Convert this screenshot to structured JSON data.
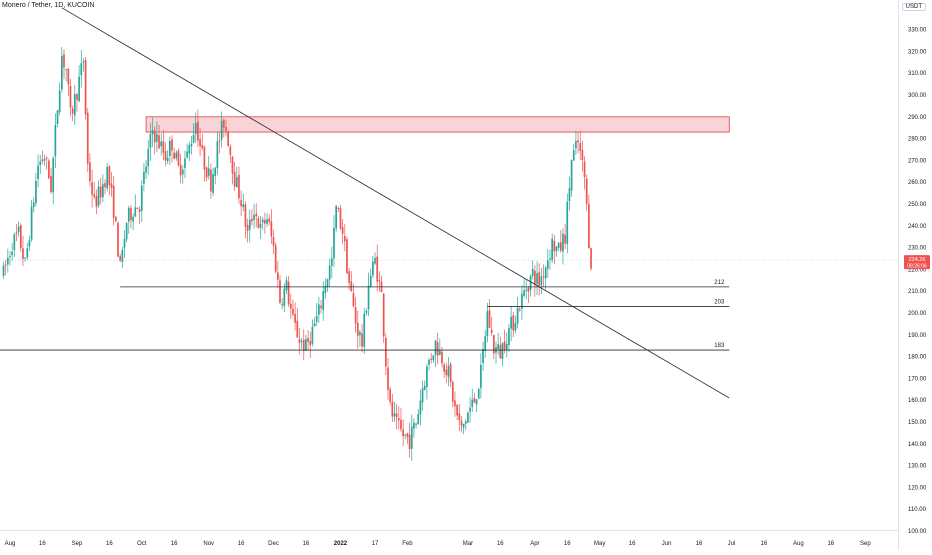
{
  "header": {
    "title": "Monero / Tether, 1D, KUCOIN",
    "currency_badge": "USDT"
  },
  "price_tag": {
    "price": "224.26",
    "countdown": "08:26:06"
  },
  "colors": {
    "up": "#26a69a",
    "down": "#ef5350",
    "trendline": "#2a2e39",
    "zone_fill": "#f7c6c9",
    "zone_stroke": "#e53946",
    "axis_text": "#131722"
  },
  "chart_data": {
    "type": "candlestick",
    "symbol": "XMR/USDT",
    "interval": "1D",
    "exchange": "KUCOIN",
    "ylim": [
      100,
      340
    ],
    "y_ticks": [
      100,
      110,
      120,
      130,
      140,
      150,
      160,
      170,
      180,
      190,
      200,
      210,
      220,
      230,
      240,
      250,
      260,
      270,
      280,
      290,
      300,
      310,
      320,
      330
    ],
    "x_tick_labels": [
      "Aug",
      "16",
      "Sep",
      "16",
      "Oct",
      "16",
      "Nov",
      "16",
      "Dec",
      "16",
      "2022",
      "17",
      "Feb",
      "Mar",
      "16",
      "Apr",
      "16",
      "May",
      "16",
      "Jun",
      "16",
      "Jul",
      "16",
      "Aug",
      "16",
      "Sep"
    ],
    "x_ticks": [
      {
        "label": "Aug",
        "date": "2021-08-01"
      },
      {
        "label": "16",
        "date": "2021-08-16"
      },
      {
        "label": "Sep",
        "date": "2021-09-01"
      },
      {
        "label": "16",
        "date": "2021-09-16"
      },
      {
        "label": "Oct",
        "date": "2021-10-01"
      },
      {
        "label": "16",
        "date": "2021-10-16"
      },
      {
        "label": "Nov",
        "date": "2021-11-01"
      },
      {
        "label": "16",
        "date": "2021-11-16"
      },
      {
        "label": "Dec",
        "date": "2021-12-01"
      },
      {
        "label": "16",
        "date": "2021-12-16"
      },
      {
        "label": "2022",
        "date": "2022-01-01"
      },
      {
        "label": "17",
        "date": "2022-01-17"
      },
      {
        "label": "Feb",
        "date": "2022-02-01"
      },
      {
        "label": "Mar",
        "date": "2022-03-01"
      },
      {
        "label": "16",
        "date": "2022-03-16"
      },
      {
        "label": "Apr",
        "date": "2022-04-01"
      },
      {
        "label": "16",
        "date": "2022-04-16"
      },
      {
        "label": "May",
        "date": "2022-05-01"
      },
      {
        "label": "16",
        "date": "2022-05-16"
      },
      {
        "label": "Jun",
        "date": "2022-06-01"
      },
      {
        "label": "16",
        "date": "2022-06-16"
      },
      {
        "label": "Jul",
        "date": "2022-07-01"
      },
      {
        "label": "16",
        "date": "2022-07-16"
      },
      {
        "label": "Aug",
        "date": "2022-08-01"
      },
      {
        "label": "16",
        "date": "2022-08-16"
      },
      {
        "label": "Sep",
        "date": "2022-09-01"
      }
    ],
    "last_price": 224.26,
    "path_points": [
      [
        "2021-07-29",
        218
      ],
      [
        "2021-08-02",
        232
      ],
      [
        "2021-08-05",
        236
      ],
      [
        "2021-08-08",
        222
      ],
      [
        "2021-08-11",
        245
      ],
      [
        "2021-08-14",
        268
      ],
      [
        "2021-08-17",
        272
      ],
      [
        "2021-08-20",
        258
      ],
      [
        "2021-08-23",
        295
      ],
      [
        "2021-08-25",
        318
      ],
      [
        "2021-08-27",
        312
      ],
      [
        "2021-08-29",
        290
      ],
      [
        "2021-09-01",
        302
      ],
      [
        "2021-09-04",
        316
      ],
      [
        "2021-09-06",
        268
      ],
      [
        "2021-09-09",
        250
      ],
      [
        "2021-09-12",
        256
      ],
      [
        "2021-09-15",
        265
      ],
      [
        "2021-09-18",
        248
      ],
      [
        "2021-09-21",
        220
      ],
      [
        "2021-09-24",
        242
      ],
      [
        "2021-09-27",
        248
      ],
      [
        "2021-09-30",
        250
      ],
      [
        "2021-10-03",
        268
      ],
      [
        "2021-10-06",
        284
      ],
      [
        "2021-10-09",
        278
      ],
      [
        "2021-10-12",
        272
      ],
      [
        "2021-10-15",
        278
      ],
      [
        "2021-10-18",
        266
      ],
      [
        "2021-10-22",
        272
      ],
      [
        "2021-10-26",
        288
      ],
      [
        "2021-10-29",
        272
      ],
      [
        "2021-11-02",
        260
      ],
      [
        "2021-11-05",
        276
      ],
      [
        "2021-11-08",
        288
      ],
      [
        "2021-11-10",
        280
      ],
      [
        "2021-11-13",
        262
      ],
      [
        "2021-11-16",
        252
      ],
      [
        "2021-11-19",
        236
      ],
      [
        "2021-11-22",
        248
      ],
      [
        "2021-11-25",
        238
      ],
      [
        "2021-11-28",
        244
      ],
      [
        "2021-12-01",
        230
      ],
      [
        "2021-12-04",
        206
      ],
      [
        "2021-12-07",
        212
      ],
      [
        "2021-12-10",
        196
      ],
      [
        "2021-12-13",
        188
      ],
      [
        "2021-12-16",
        184
      ],
      [
        "2021-12-19",
        192
      ],
      [
        "2021-12-22",
        200
      ],
      [
        "2021-12-25",
        214
      ],
      [
        "2021-12-28",
        224
      ],
      [
        "2021-12-30",
        248
      ],
      [
        "2022-01-02",
        238
      ],
      [
        "2022-01-05",
        214
      ],
      [
        "2022-01-08",
        196
      ],
      [
        "2022-01-11",
        186
      ],
      [
        "2022-01-14",
        214
      ],
      [
        "2022-01-17",
        224
      ],
      [
        "2022-01-20",
        208
      ],
      [
        "2022-01-22",
        178
      ],
      [
        "2022-01-24",
        156
      ],
      [
        "2022-01-27",
        148
      ],
      [
        "2022-01-30",
        144
      ],
      [
        "2022-02-02",
        142
      ],
      [
        "2022-02-05",
        150
      ],
      [
        "2022-02-08",
        166
      ],
      [
        "2022-02-11",
        178
      ],
      [
        "2022-02-14",
        186
      ],
      [
        "2022-02-17",
        180
      ],
      [
        "2022-02-20",
        172
      ],
      [
        "2022-02-23",
        156
      ],
      [
        "2022-02-26",
        146
      ],
      [
        "2022-03-01",
        154
      ],
      [
        "2022-03-04",
        160
      ],
      [
        "2022-03-07",
        172
      ],
      [
        "2022-03-10",
        200
      ],
      [
        "2022-03-13",
        184
      ],
      [
        "2022-03-16",
        182
      ],
      [
        "2022-03-19",
        190
      ],
      [
        "2022-03-22",
        196
      ],
      [
        "2022-03-25",
        204
      ],
      [
        "2022-03-28",
        212
      ],
      [
        "2022-03-31",
        218
      ],
      [
        "2022-04-03",
        214
      ],
      [
        "2022-04-06",
        222
      ],
      [
        "2022-04-09",
        232
      ],
      [
        "2022-04-12",
        228
      ],
      [
        "2022-04-15",
        236
      ],
      [
        "2022-04-18",
        270
      ],
      [
        "2022-04-21",
        278
      ],
      [
        "2022-04-24",
        262
      ],
      [
        "2022-04-26",
        234
      ],
      [
        "2022-04-27",
        224
      ]
    ],
    "horizontal_levels": [
      {
        "label": "212",
        "value": 212,
        "from": "2021-09-21",
        "to": "2022-06-30"
      },
      {
        "label": "203",
        "value": 203,
        "from": "2022-03-10",
        "to": "2022-06-30"
      },
      {
        "label": "183",
        "value": 183,
        "from": "2021-07-24",
        "to": "2022-06-30"
      }
    ],
    "resistance_zone": {
      "y_from": 283,
      "y_to": 290,
      "from": "2021-10-03",
      "to": "2022-06-30"
    },
    "trendline": {
      "from": [
        "2021-08-25",
        340
      ],
      "to": [
        "2022-06-30",
        161
      ]
    },
    "price_line": {
      "value": 224.26
    },
    "grid": false,
    "legend": "none"
  }
}
